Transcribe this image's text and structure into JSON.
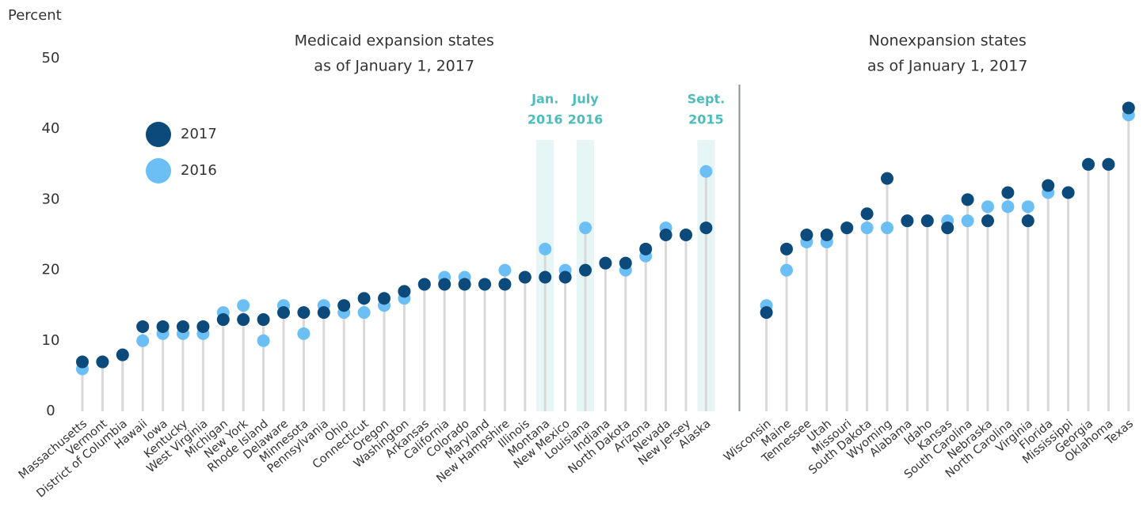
{
  "chart_data": {
    "type": "dot",
    "y_label": "Percent",
    "ylim": [
      0,
      50
    ],
    "yticks": [
      0,
      10,
      20,
      30,
      40,
      50
    ],
    "series": [
      {
        "name": "2017",
        "color": "#0b4a7a"
      },
      {
        "name": "2016",
        "color": "#6cbff5"
      }
    ],
    "panels": [
      {
        "title": [
          "Medicaid expansion states",
          "as of January 1, 2017"
        ],
        "categories": [
          "Massachusetts",
          "Vermont",
          "District of Columbia",
          "Hawaii",
          "Iowa",
          "Kentucky",
          "West Virginia",
          "Michigan",
          "New York",
          "Rhode Island",
          "Delaware",
          "Minnesota",
          "Pennsylvania",
          "Ohio",
          "Connecticut",
          "Oregon",
          "Washington",
          "Arkansas",
          "California",
          "Colorado",
          "Maryland",
          "New Hampshire",
          "Illinois",
          "Montana",
          "New Mexico",
          "Louisiana",
          "Indiana",
          "North Dakota",
          "Arizona",
          "Nevada",
          "New Jersey",
          "Alaska"
        ],
        "series_values": [
          [
            7,
            7,
            8,
            12,
            12,
            12,
            12,
            13,
            13,
            13,
            14,
            14,
            14,
            15,
            16,
            16,
            17,
            18,
            18,
            18,
            18,
            18,
            19,
            19,
            19,
            20,
            21,
            21,
            23,
            25,
            25,
            26
          ],
          [
            6,
            7,
            8,
            10,
            11,
            11,
            11,
            14,
            15,
            10,
            15,
            11,
            15,
            14,
            14,
            15,
            16,
            18,
            19,
            19,
            18,
            20,
            19,
            23,
            20,
            26,
            21,
            20,
            22,
            26,
            25,
            34
          ]
        ],
        "highlights": [
          {
            "category": "Montana",
            "label": [
              "Jan.",
              "2016"
            ]
          },
          {
            "category": "Louisiana",
            "label": [
              "July",
              "2016"
            ]
          },
          {
            "category": "Alaska",
            "label": [
              "Sept.",
              "2015"
            ]
          }
        ]
      },
      {
        "title": [
          "Nonexpansion states",
          "as of January 1, 2017"
        ],
        "categories": [
          "Wisconsin",
          "Maine",
          "Tennessee",
          "Utah",
          "Missouri",
          "South Dakota",
          "Wyoming",
          "Alabama",
          "Idaho",
          "Kansas",
          "South Carolina",
          "Nebraska",
          "North Carolina",
          "Virginia",
          "Florida",
          "Mississippi",
          "Georgia",
          "Oklahoma",
          "Texas"
        ],
        "series_values": [
          [
            14,
            23,
            25,
            25,
            26,
            28,
            33,
            27,
            27,
            26,
            30,
            27,
            31,
            27,
            32,
            31,
            35,
            35,
            43
          ],
          [
            15,
            20,
            24,
            24,
            26,
            26,
            26,
            27,
            27,
            27,
            27,
            29,
            29,
            29,
            31,
            31,
            35,
            35,
            42
          ]
        ],
        "highlights": []
      }
    ]
  }
}
